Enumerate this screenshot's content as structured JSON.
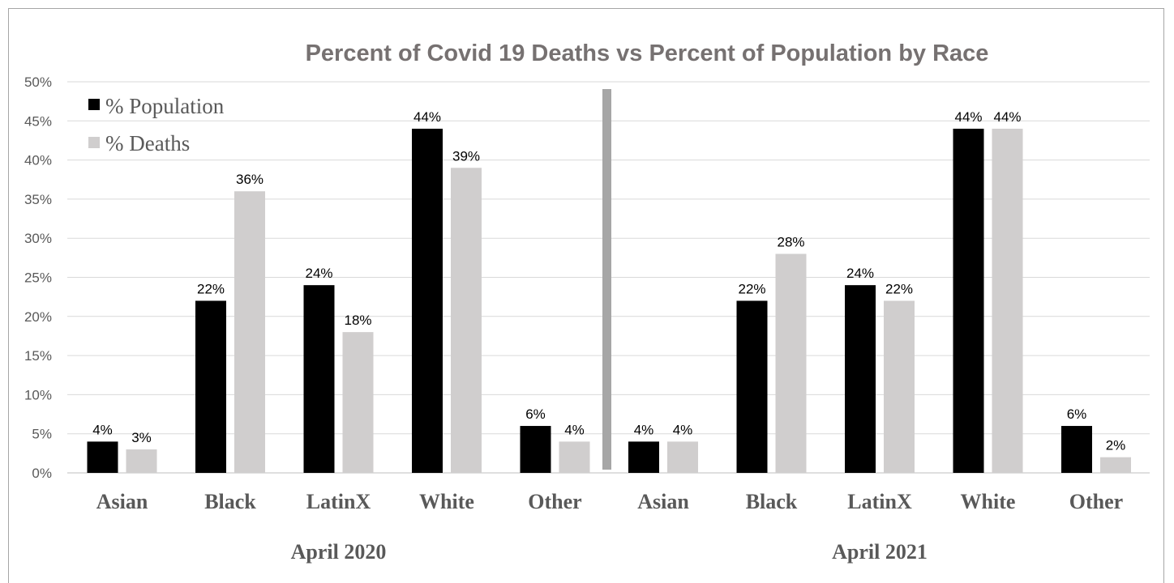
{
  "colors": {
    "population": "#000000",
    "deaths": "#d0cece",
    "divider": "#a6a6a6",
    "text": "#595959",
    "title": "#767171"
  },
  "chart_data": {
    "type": "bar",
    "title": "Percent of Covid 19 Deaths vs Percent of Population by Race",
    "ylim": [
      0,
      50
    ],
    "yticks": [
      "0%",
      "5%",
      "10%",
      "15%",
      "20%",
      "25%",
      "30%",
      "35%",
      "40%",
      "45%",
      "50%"
    ],
    "grid": true,
    "legend_position": "top-left",
    "groups": [
      "April 2020",
      "April 2021"
    ],
    "categories": [
      "Asian",
      "Black",
      "LatinX",
      "White",
      "Other",
      "Asian",
      "Black",
      "LatinX",
      "White",
      "Other"
    ],
    "series": [
      {
        "name": "% Population",
        "values": [
          4,
          22,
          24,
          44,
          6,
          4,
          22,
          24,
          44,
          6
        ],
        "labels": [
          "4%",
          "22%",
          "24%",
          "44%",
          "6%",
          "4%",
          "22%",
          "24%",
          "44%",
          "6%"
        ]
      },
      {
        "name": "% Deaths",
        "values": [
          3,
          36,
          18,
          39,
          4,
          4,
          28,
          22,
          44,
          2
        ],
        "labels": [
          "3%",
          "36%",
          "18%",
          "39%",
          "4%",
          "4%",
          "28%",
          "22%",
          "44%",
          "2%"
        ]
      }
    ]
  }
}
